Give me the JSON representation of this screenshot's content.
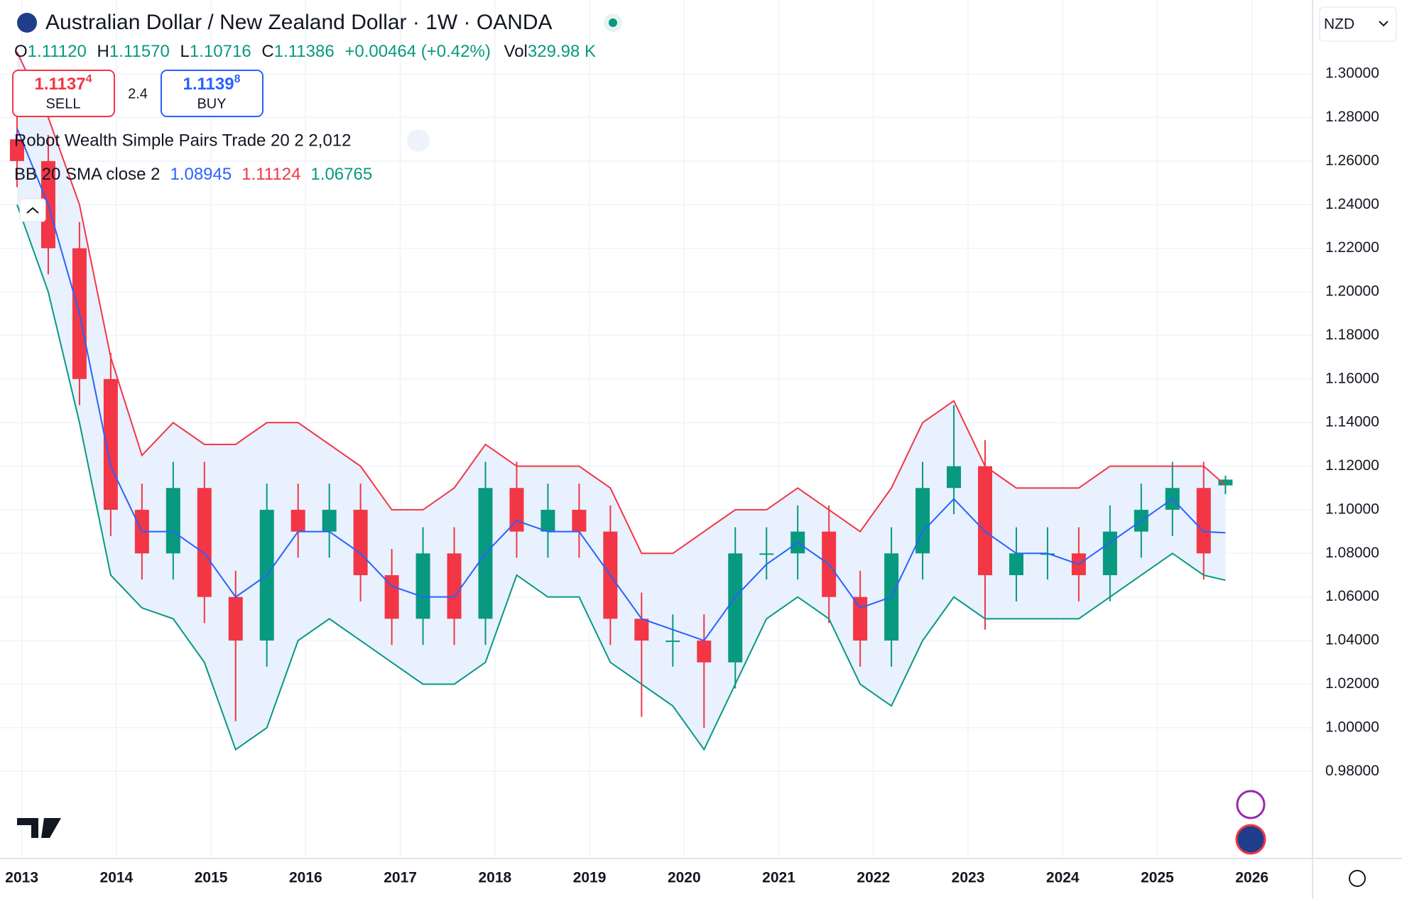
{
  "header": {
    "title": "Australian Dollar / New Zealand Dollar · 1W · OANDA",
    "ohlc": [
      {
        "label": "O",
        "value": "1.11120"
      },
      {
        "label": "H",
        "value": "1.11570"
      },
      {
        "label": "L",
        "value": "1.10716"
      },
      {
        "label": "C",
        "value": "1.11386"
      }
    ],
    "change": "+0.00464 (+0.42%)",
    "volume_label": "Vol",
    "volume": "329.98 K",
    "sell": {
      "price": "1.1137",
      "pip": "4",
      "label": "SELL"
    },
    "spread": "2.4",
    "buy": {
      "price": "1.1139",
      "pip": "8",
      "label": "BUY"
    },
    "indicator": "Robot Wealth Simple Pairs Trade 20 2 2,012",
    "currency": "NZD"
  },
  "chart_data": {
    "type": "candlestick",
    "x": [
      2012.95,
      2013.28,
      2013.61,
      2013.94,
      2014.27,
      2014.6,
      2014.93,
      2015.26,
      2015.59,
      2015.92,
      2016.25,
      2016.58,
      2016.91,
      2017.24,
      2017.57,
      2017.9,
      2018.23,
      2018.56,
      2018.89,
      2019.22,
      2019.55,
      2019.88,
      2020.21,
      2020.54,
      2020.87,
      2021.2,
      2021.53,
      2021.86,
      2022.19,
      2022.52,
      2022.85,
      2023.18,
      2023.51,
      2023.84,
      2024.17,
      2024.5,
      2024.83,
      2025.16,
      2025.49,
      2025.72
    ],
    "open": [
      1.27,
      1.26,
      1.22,
      1.16,
      1.1,
      1.08,
      1.11,
      1.06,
      1.04,
      1.1,
      1.09,
      1.1,
      1.07,
      1.05,
      1.08,
      1.05,
      1.11,
      1.09,
      1.1,
      1.09,
      1.05,
      1.04,
      1.04,
      1.03,
      1.08,
      1.08,
      1.09,
      1.06,
      1.04,
      1.08,
      1.11,
      1.12,
      1.07,
      1.08,
      1.08,
      1.07,
      1.09,
      1.1,
      1.11,
      1.1112
    ],
    "high": [
      1.282,
      1.272,
      1.232,
      1.172,
      1.112,
      1.122,
      1.122,
      1.072,
      1.112,
      1.112,
      1.112,
      1.112,
      1.082,
      1.092,
      1.092,
      1.122,
      1.122,
      1.112,
      1.112,
      1.102,
      1.062,
      1.052,
      1.052,
      1.092,
      1.092,
      1.102,
      1.102,
      1.072,
      1.092,
      1.122,
      1.148,
      1.132,
      1.092,
      1.092,
      1.092,
      1.102,
      1.112,
      1.122,
      1.122,
      1.1157
    ],
    "low": [
      1.248,
      1.208,
      1.148,
      1.088,
      1.068,
      1.068,
      1.048,
      1.003,
      1.028,
      1.078,
      1.078,
      1.058,
      1.038,
      1.038,
      1.038,
      1.038,
      1.078,
      1.078,
      1.078,
      1.038,
      1.005,
      1.028,
      1.0,
      1.018,
      1.068,
      1.068,
      1.048,
      1.028,
      1.028,
      1.068,
      1.098,
      1.045,
      1.058,
      1.068,
      1.058,
      1.058,
      1.078,
      1.088,
      1.068,
      1.10716
    ],
    "close": [
      1.26,
      1.22,
      1.16,
      1.1,
      1.08,
      1.11,
      1.06,
      1.04,
      1.1,
      1.09,
      1.1,
      1.07,
      1.05,
      1.08,
      1.05,
      1.11,
      1.09,
      1.1,
      1.09,
      1.05,
      1.04,
      1.04,
      1.03,
      1.08,
      1.08,
      1.09,
      1.06,
      1.04,
      1.08,
      1.11,
      1.12,
      1.07,
      1.08,
      1.08,
      1.07,
      1.09,
      1.1,
      1.11,
      1.08,
      1.11386
    ],
    "up_color": "#089981",
    "down_color": "#f23645",
    "bands": {
      "label": "BB 20 SMA close 2",
      "fill": "#e8f1fd",
      "series": [
        {
          "color": "#2962ff",
          "values": [
            1.275,
            1.24,
            1.19,
            1.12,
            1.09,
            1.09,
            1.08,
            1.06,
            1.07,
            1.09,
            1.09,
            1.08,
            1.065,
            1.06,
            1.06,
            1.08,
            1.095,
            1.09,
            1.09,
            1.07,
            1.05,
            1.045,
            1.04,
            1.06,
            1.075,
            1.085,
            1.075,
            1.055,
            1.06,
            1.09,
            1.105,
            1.09,
            1.08,
            1.08,
            1.075,
            1.085,
            1.095,
            1.105,
            1.09,
            1.08945
          ],
          "value_label": "1.08945"
        },
        {
          "color": "#f23645",
          "values": [
            1.31,
            1.28,
            1.24,
            1.17,
            1.125,
            1.14,
            1.13,
            1.13,
            1.14,
            1.14,
            1.13,
            1.12,
            1.1,
            1.1,
            1.11,
            1.13,
            1.12,
            1.12,
            1.12,
            1.11,
            1.08,
            1.08,
            1.09,
            1.1,
            1.1,
            1.11,
            1.1,
            1.09,
            1.11,
            1.14,
            1.15,
            1.12,
            1.11,
            1.11,
            1.11,
            1.12,
            1.12,
            1.12,
            1.12,
            1.11124
          ],
          "value_label": "1.11124"
        },
        {
          "color": "#089981",
          "values": [
            1.24,
            1.2,
            1.14,
            1.07,
            1.055,
            1.05,
            1.03,
            0.99,
            1.0,
            1.04,
            1.05,
            1.04,
            1.03,
            1.02,
            1.02,
            1.03,
            1.07,
            1.06,
            1.06,
            1.03,
            1.02,
            1.01,
            0.99,
            1.02,
            1.05,
            1.06,
            1.05,
            1.02,
            1.01,
            1.04,
            1.06,
            1.05,
            1.05,
            1.05,
            1.05,
            1.06,
            1.07,
            1.08,
            1.07,
            1.06765
          ],
          "value_label": "1.06765"
        }
      ]
    },
    "xlim": [
      2012.77,
      2026.64
    ],
    "xticks": [
      2013,
      2014,
      2015,
      2016,
      2017,
      2018,
      2019,
      2020,
      2021,
      2022,
      2023,
      2024,
      2025,
      2026
    ],
    "ylim": [
      0.94,
      1.3339
    ],
    "yticks": [
      {
        "value": 0.98,
        "label": "0.98000"
      },
      {
        "value": 1.0,
        "label": "1.00000"
      },
      {
        "value": 1.02,
        "label": "1.02000"
      },
      {
        "value": 1.04,
        "label": "1.04000"
      },
      {
        "value": 1.06,
        "label": "1.06000"
      },
      {
        "value": 1.08,
        "label": "1.08000"
      },
      {
        "value": 1.1,
        "label": "1.10000"
      },
      {
        "value": 1.12,
        "label": "1.12000"
      },
      {
        "value": 1.14,
        "label": "1.14000"
      },
      {
        "value": 1.16,
        "label": "1.16000"
      },
      {
        "value": 1.18,
        "label": "1.18000"
      },
      {
        "value": 1.2,
        "label": "1.20000"
      },
      {
        "value": 1.22,
        "label": "1.22000"
      },
      {
        "value": 1.24,
        "label": "1.24000"
      },
      {
        "value": 1.26,
        "label": "1.26000"
      },
      {
        "value": 1.28,
        "label": "1.28000"
      },
      {
        "value": 1.3,
        "label": "1.30000"
      }
    ],
    "grid": true
  }
}
